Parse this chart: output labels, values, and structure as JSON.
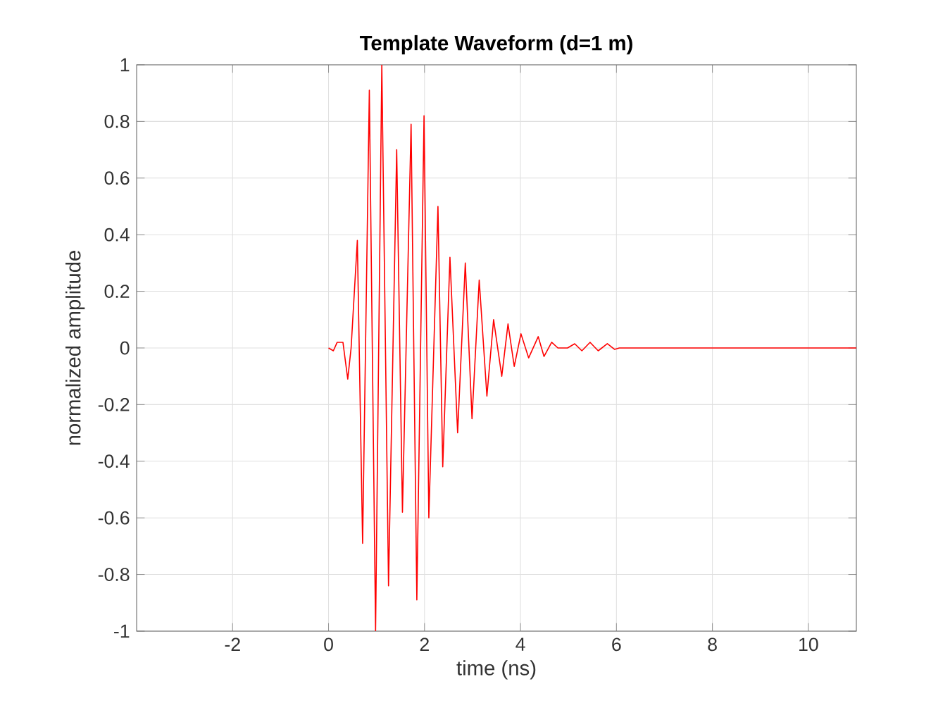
{
  "chart_data": {
    "type": "line",
    "title": "Template Waveform (d=1 m)",
    "xlabel": "time (ns)",
    "ylabel": "normalized amplitude",
    "xlim": [
      -4,
      11
    ],
    "ylim": [
      -1,
      1
    ],
    "xticks": [
      -2,
      0,
      2,
      4,
      6,
      8,
      10
    ],
    "yticks": [
      -1,
      -0.8,
      -0.6,
      -0.4,
      -0.2,
      0,
      0.2,
      0.4,
      0.6,
      0.8,
      1
    ],
    "grid": true,
    "series": [
      {
        "color": "#ff0000",
        "x": [
          0,
          0.1,
          0.18,
          0.3,
          0.4,
          0.47,
          0.6,
          0.71,
          0.85,
          0.98,
          1.11,
          1.25,
          1.42,
          1.54,
          1.72,
          1.84,
          1.99,
          2.09,
          2.28,
          2.38,
          2.53,
          2.69,
          2.85,
          2.99,
          3.14,
          3.3,
          3.44,
          3.61,
          3.74,
          3.87,
          4.01,
          4.17,
          4.37,
          4.49,
          4.65,
          4.78,
          4.98,
          5.13,
          5.28,
          5.45,
          5.62,
          5.81,
          5.96,
          6.06,
          11
        ],
        "values": [
          0,
          -0.01,
          0.02,
          0.02,
          -0.11,
          0,
          0.38,
          -0.69,
          0.91,
          -1.0,
          1.0,
          -0.84,
          0.7,
          -0.58,
          0.79,
          -0.89,
          0.82,
          -0.6,
          0.5,
          -0.42,
          0.32,
          -0.3,
          0.3,
          -0.25,
          0.24,
          -0.17,
          0.1,
          -0.1,
          0.085,
          -0.065,
          0.05,
          -0.035,
          0.04,
          -0.03,
          0.02,
          0,
          0,
          0.015,
          -0.01,
          0.02,
          -0.01,
          0.015,
          -0.005,
          0,
          0
        ]
      }
    ]
  }
}
